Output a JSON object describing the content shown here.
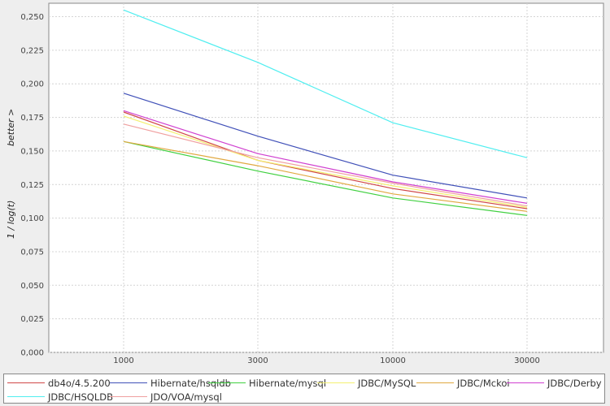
{
  "chart_data": {
    "type": "line",
    "ylabel_top": "better >",
    "ylabel_bottom": "1 / log(t)",
    "xlabel": "",
    "categories": [
      "1000",
      "3000",
      "10000",
      "30000"
    ],
    "ylim": [
      0,
      0.26
    ],
    "yticks": [
      "0,000",
      "0,025",
      "0,050",
      "0,075",
      "0,100",
      "0,125",
      "0,150",
      "0,175",
      "0,200",
      "0,225",
      "0,250"
    ],
    "grid": true,
    "legend_position": "bottom",
    "series": [
      {
        "name": "db4o/4.5.200",
        "color": "#d04848",
        "values": [
          0.179,
          0.143,
          0.122,
          0.107
        ]
      },
      {
        "name": "Hibernate/hsqldb",
        "color": "#4050b8",
        "values": [
          0.193,
          0.161,
          0.132,
          0.115
        ]
      },
      {
        "name": "Hibernate/mysql",
        "color": "#40d040",
        "values": [
          0.157,
          0.135,
          0.115,
          0.102
        ]
      },
      {
        "name": "JDBC/MySQL",
        "color": "#f4f070",
        "values": [
          0.176,
          0.143,
          0.124,
          0.108
        ]
      },
      {
        "name": "JDBC/Mckoi",
        "color": "#e0a840",
        "values": [
          0.157,
          0.139,
          0.118,
          0.105
        ]
      },
      {
        "name": "JDBC/Derby",
        "color": "#d040d0",
        "values": [
          0.18,
          0.148,
          0.127,
          0.111
        ]
      },
      {
        "name": "JDBC/HSQLDB",
        "color": "#50eef0",
        "values": [
          0.255,
          0.216,
          0.171,
          0.145
        ]
      },
      {
        "name": "JDO/VOA/mysql",
        "color": "#f0a0a0",
        "values": [
          0.17,
          0.145,
          0.126,
          0.109
        ]
      }
    ]
  }
}
